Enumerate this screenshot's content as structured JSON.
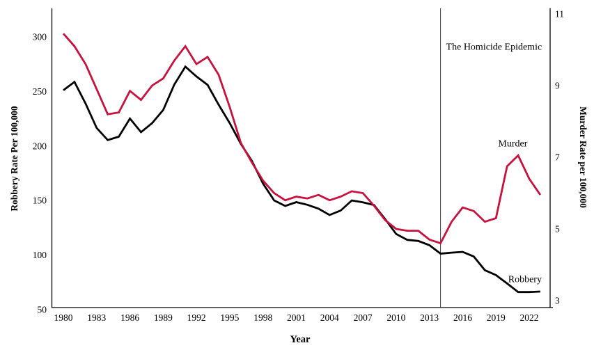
{
  "chart_data": {
    "type": "line",
    "title": "",
    "x": [
      1980,
      1981,
      1982,
      1983,
      1984,
      1985,
      1986,
      1987,
      1988,
      1989,
      1990,
      1991,
      1992,
      1993,
      1994,
      1995,
      1996,
      1997,
      1998,
      1999,
      2000,
      2001,
      2002,
      2003,
      2004,
      2005,
      2006,
      2007,
      2008,
      2009,
      2010,
      2011,
      2012,
      2013,
      2014,
      2015,
      2016,
      2017,
      2018,
      2019,
      2020,
      2021,
      2022,
      2023
    ],
    "series": [
      {
        "name": "Robbery",
        "axis": "left",
        "color": "#000000",
        "values": [
          251.1,
          258.7,
          238.9,
          216.5,
          205.4,
          208.5,
          225.1,
          212.7,
          220.9,
          233.0,
          256.3,
          272.7,
          263.7,
          256.0,
          237.8,
          220.9,
          201.9,
          186.2,
          165.5,
          150.1,
          145.0,
          148.5,
          146.1,
          142.5,
          136.7,
          140.8,
          150.0,
          148.3,
          145.9,
          133.1,
          119.3,
          113.9,
          112.9,
          109.0,
          101.3,
          102.2,
          102.9,
          98.6,
          86.1,
          81.6,
          73.9,
          66.1,
          66.1,
          66.5
        ]
      },
      {
        "name": "Murder",
        "axis": "right",
        "color": "#C8113C",
        "values": [
          10.45,
          10.1,
          9.6,
          8.9,
          8.2,
          8.25,
          8.85,
          8.6,
          9.0,
          9.2,
          9.7,
          10.1,
          9.6,
          9.8,
          9.3,
          8.4,
          7.4,
          6.85,
          6.35,
          6.0,
          5.8,
          5.9,
          5.85,
          5.95,
          5.8,
          5.9,
          6.05,
          6.0,
          5.65,
          5.25,
          5.0,
          4.95,
          4.95,
          4.7,
          4.6,
          5.2,
          5.6,
          5.5,
          5.2,
          5.3,
          6.75,
          7.05,
          6.4,
          5.95
        ]
      }
    ],
    "x_axis": {
      "label": "Year",
      "ticks": [
        1980,
        1983,
        1986,
        1989,
        1992,
        1995,
        1998,
        2001,
        2004,
        2007,
        2010,
        2013,
        2016,
        2019,
        2022
      ],
      "range": [
        1980,
        2023
      ]
    },
    "left_axis": {
      "label": "Robbery Rate Per 100,000",
      "ticks": [
        50,
        100,
        150,
        200,
        250,
        300
      ],
      "range": [
        50,
        300
      ]
    },
    "right_axis": {
      "label": "Murder Rate per 100,000",
      "ticks": [
        3,
        5,
        7,
        9,
        11
      ],
      "range": [
        3,
        11
      ]
    },
    "grid": false,
    "legend": "none",
    "annotations": {
      "vline": {
        "year": 2014,
        "label": "The Homicide Epidemic",
        "label_year": 2014.5,
        "label_value": 10.0
      },
      "series_labels": [
        {
          "text": "Murder",
          "year": 2019.2,
          "value": 7.3,
          "axis": "right"
        },
        {
          "text": "Robbery",
          "year": 2020.1,
          "value": 75.0,
          "axis": "left"
        }
      ]
    },
    "colors": {
      "murder_line": "#C8113C",
      "robbery_line": "#000000",
      "reference_line": "#3f3f3f"
    }
  }
}
